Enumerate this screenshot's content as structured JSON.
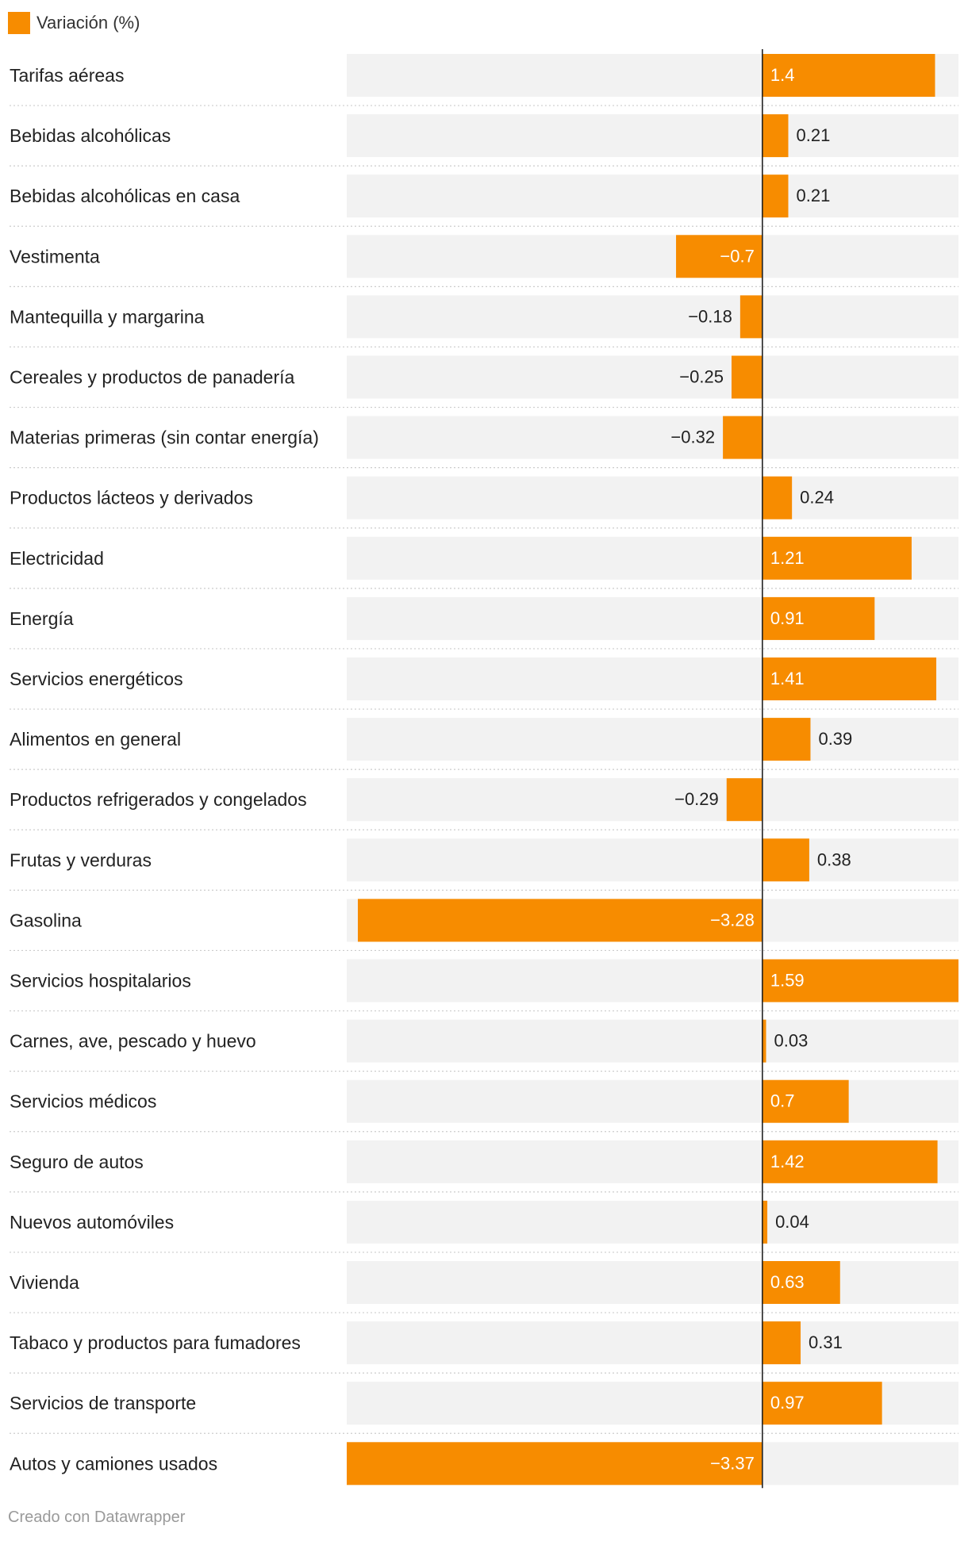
{
  "legend": {
    "label": "Variación (%)",
    "color": "#f78c00"
  },
  "footer": {
    "credit": "Creado con Datawrapper"
  },
  "colors": {
    "bar": "#f78c00",
    "track": "#f2f2f2",
    "axis": "#222222",
    "separator": "#cccccc",
    "label_inside": "#ffffff",
    "label_outside": "#222222"
  },
  "chart_data": {
    "type": "bar",
    "orientation": "horizontal",
    "title": "",
    "xlabel": "",
    "ylabel": "",
    "xlim": [
      -3.37,
      1.59
    ],
    "series": [
      {
        "name": "Variación (%)"
      }
    ],
    "categories": [
      "Tarifas aéreas",
      "Bebidas alcohólicas",
      "Bebidas alcohólicas en casa",
      "Vestimenta",
      "Mantequilla y margarina",
      "Cereales y productos de panadería",
      "Materias primeras (sin contar energía)",
      "Productos lácteos y derivados",
      "Electricidad",
      "Energía",
      "Servicios energéticos",
      "Alimentos en general",
      "Productos refrigerados y congelados",
      "Frutas y verduras",
      "Gasolina",
      "Servicios hospitalarios",
      "Carnes, ave, pescado y huevo",
      "Servicios médicos",
      "Seguro de autos",
      "Nuevos automóviles",
      "Vivienda",
      "Tabaco y productos para fumadores",
      "Servicios de transporte",
      "Autos y camiones usados"
    ],
    "values": [
      1.4,
      0.21,
      0.21,
      -0.7,
      -0.18,
      -0.25,
      -0.32,
      0.24,
      1.21,
      0.91,
      1.41,
      0.39,
      -0.29,
      0.38,
      -3.28,
      1.59,
      0.03,
      0.7,
      1.42,
      0.04,
      0.63,
      0.31,
      0.97,
      -3.37
    ],
    "value_labels": [
      "1.4",
      "0.21",
      "0.21",
      "−0.7",
      "−0.18",
      "−0.25",
      "−0.32",
      "0.24",
      "1.21",
      "0.91",
      "1.41",
      "0.39",
      "−0.29",
      "0.38",
      "−3.28",
      "1.59",
      "0.03",
      "0.7",
      "1.42",
      "0.04",
      "0.63",
      "0.31",
      "0.97",
      "−3.37"
    ]
  }
}
